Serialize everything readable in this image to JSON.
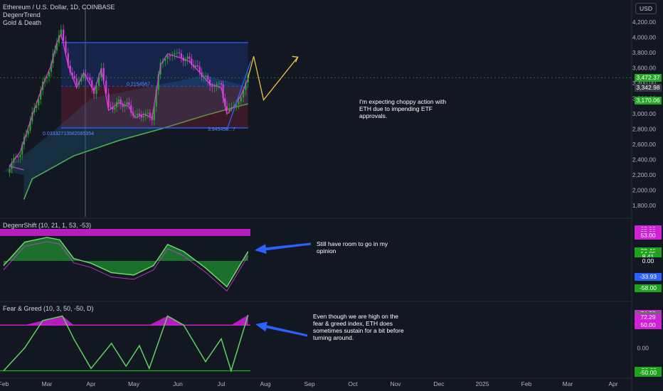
{
  "header": {
    "symbol_line": "Ethereum / U.S. Dollar, 1D, COINBASE",
    "indicator_1": "DegenrTrend",
    "indicator_2": "Gold & Death",
    "currency_button": "USD"
  },
  "colors": {
    "background": "#131722",
    "bull": "#26a626",
    "bear": "#d040d8",
    "channel": "#2962ff",
    "ema_fast": "#e040e0",
    "ema_slow": "#4caf50",
    "projection": "#e8c547",
    "arrow": "#2962ff",
    "overbought": "#d020d8",
    "oversold": "#1fa31f"
  },
  "chart_data": [
    {
      "type": "candlestick",
      "title": "Ethereum / U.S. Dollar, 1D, COINBASE",
      "ylabel": "USD",
      "ylim": [
        1700,
        4300
      ],
      "y_ticks": [
        1800,
        2000,
        2200,
        2400,
        2600,
        2800,
        3000,
        3200,
        3400,
        3600,
        3800,
        4000,
        4200
      ],
      "price_tags": [
        {
          "label": "3,472.37",
          "color": "#26a626"
        },
        {
          "label": "3,342.98",
          "color": "#363a45"
        },
        {
          "label": "3,170.06",
          "color": "#26a626"
        }
      ],
      "close_series": [
        {
          "date": "Jan 28",
          "close": 2260
        },
        {
          "date": "Feb 05",
          "close": 2310
        },
        {
          "date": "Feb 12",
          "close": 2500
        },
        {
          "date": "Feb 20",
          "close": 2980
        },
        {
          "date": "Feb 27",
          "close": 3380
        },
        {
          "date": "Mar 04",
          "close": 3650
        },
        {
          "date": "Mar 08",
          "close": 3950
        },
        {
          "date": "Mar 11",
          "close": 4060
        },
        {
          "date": "Mar 16",
          "close": 3650
        },
        {
          "date": "Mar 22",
          "close": 3350
        },
        {
          "date": "Mar 27",
          "close": 3550
        },
        {
          "date": "Apr 03",
          "close": 3300
        },
        {
          "date": "Apr 08",
          "close": 3600
        },
        {
          "date": "Apr 13",
          "close": 3050
        },
        {
          "date": "Apr 20",
          "close": 3150
        },
        {
          "date": "Apr 27",
          "close": 3100
        },
        {
          "date": "May 02",
          "close": 2950
        },
        {
          "date": "May 08",
          "close": 3000
        },
        {
          "date": "May 14",
          "close": 2950
        },
        {
          "date": "May 20",
          "close": 3650
        },
        {
          "date": "May 25",
          "close": 3800
        },
        {
          "date": "Jun 02",
          "close": 3750
        },
        {
          "date": "Jun 09",
          "close": 3700
        },
        {
          "date": "Jun 16",
          "close": 3550
        },
        {
          "date": "Jun 23",
          "close": 3400
        },
        {
          "date": "Jul 01",
          "close": 3350
        },
        {
          "date": "Jul 05",
          "close": 3000
        },
        {
          "date": "Jul 10",
          "close": 3100
        },
        {
          "date": "Jul 15",
          "close": 3250
        },
        {
          "date": "Jul 20",
          "close": 3472
        }
      ],
      "channel_upper": 3930,
      "channel_lower": 2815,
      "channel_mid": 3360,
      "channel_labels": [
        "0.03332713582085354",
        "0.2154567...",
        "3.945456...7"
      ],
      "projection_path": [
        {
          "date": "Jul 20",
          "price": 3472
        },
        {
          "date": "Jul 24",
          "price": 3750
        },
        {
          "date": "Jul 31",
          "price": 3180
        },
        {
          "date": "Aug 24",
          "price": 3740
        }
      ],
      "annotation": "I'm expecting choppy action with ETH due to impending ETF approvals."
    },
    {
      "type": "oscillator",
      "title": "DegenrShift (10, 21, 1, 53, -53)",
      "ylim": [
        -68,
        68
      ],
      "bands": {
        "upper": [
          53,
          68
        ],
        "lower": [
          -68,
          -53
        ]
      },
      "levels": [
        68.0,
        63.0,
        58.0,
        53.0,
        20.46,
        14.05,
        8.41,
        0.0,
        -33.93,
        -58.0,
        -68.0
      ],
      "value_tags": [
        {
          "label": "68.00",
          "color": "#d020d8"
        },
        {
          "label": "63.00",
          "color": "#d020d8"
        },
        {
          "label": "58.00",
          "color": "#d020d8"
        },
        {
          "label": "53.00",
          "color": "#d020d8"
        },
        {
          "label": "20.46",
          "color": "#1fa31f"
        },
        {
          "label": "14.05",
          "color": "#1fa31f"
        },
        {
          "label": "8.41",
          "color": "#1fa31f"
        },
        {
          "label": "0.00",
          "color": "#131722"
        },
        {
          "label": "-33.93",
          "color": "#2962ff"
        },
        {
          "label": "-58.00",
          "color": "#1fa31f"
        }
      ],
      "series": [
        {
          "date": "Feb 01",
          "value": -10
        },
        {
          "date": "Feb 15",
          "value": 40
        },
        {
          "date": "Mar 01",
          "value": 50
        },
        {
          "date": "Mar 10",
          "value": 45
        },
        {
          "date": "Mar 20",
          "value": 5
        },
        {
          "date": "Apr 01",
          "value": -5
        },
        {
          "date": "Apr 15",
          "value": -25
        },
        {
          "date": "May 01",
          "value": -30
        },
        {
          "date": "May 15",
          "value": -10
        },
        {
          "date": "May 25",
          "value": 35
        },
        {
          "date": "Jun 05",
          "value": 20
        },
        {
          "date": "Jun 20",
          "value": -15
        },
        {
          "date": "Jul 05",
          "value": -55
        },
        {
          "date": "Jul 20",
          "value": 20
        }
      ],
      "annotation": "Still have room to go in my opinion"
    },
    {
      "type": "oscillator",
      "title": "Fear & Greed (10, 3, 50, -50, D)",
      "ylim": [
        -60,
        80
      ],
      "levels": [
        74.95,
        72.29,
        50.0,
        0.0,
        -50.0
      ],
      "value_tags": [
        {
          "label": "74.95",
          "color": "#d020d8"
        },
        {
          "label": "74.95",
          "color": "#1fa31f"
        },
        {
          "label": "72.29",
          "color": "#d020d8"
        },
        {
          "label": "50.00",
          "color": "#d020d8"
        },
        {
          "label": "-50.00",
          "color": "#1fa31f"
        },
        {
          "label": "-50.00",
          "color": "#1fa31f"
        }
      ],
      "series": [
        {
          "date": "Feb 01",
          "value": -50
        },
        {
          "date": "Feb 15",
          "value": 0
        },
        {
          "date": "Feb 27",
          "value": 60
        },
        {
          "date": "Mar 12",
          "value": 70
        },
        {
          "date": "Mar 20",
          "value": 20
        },
        {
          "date": "Apr 01",
          "value": -45
        },
        {
          "date": "Apr 15",
          "value": 10
        },
        {
          "date": "Apr 25",
          "value": -40
        },
        {
          "date": "May 05",
          "value": 5
        },
        {
          "date": "May 12",
          "value": -45
        },
        {
          "date": "May 25",
          "value": 70
        },
        {
          "date": "Jun 05",
          "value": 50
        },
        {
          "date": "Jun 20",
          "value": -30
        },
        {
          "date": "Jul 01",
          "value": 20
        },
        {
          "date": "Jul 08",
          "value": -50
        },
        {
          "date": "Jul 20",
          "value": 72
        }
      ],
      "annotation": "Even though we are high on the fear & greed index, ETH does sometimes sustain for a bit before turning around."
    }
  ],
  "x_axis": {
    "labels": [
      "Feb",
      "Mar",
      "Apr",
      "May",
      "Jun",
      "Jul",
      "Aug",
      "Sep",
      "Oct",
      "Nov",
      "Dec",
      "2025",
      "Feb",
      "Mar",
      "Apr"
    ]
  }
}
